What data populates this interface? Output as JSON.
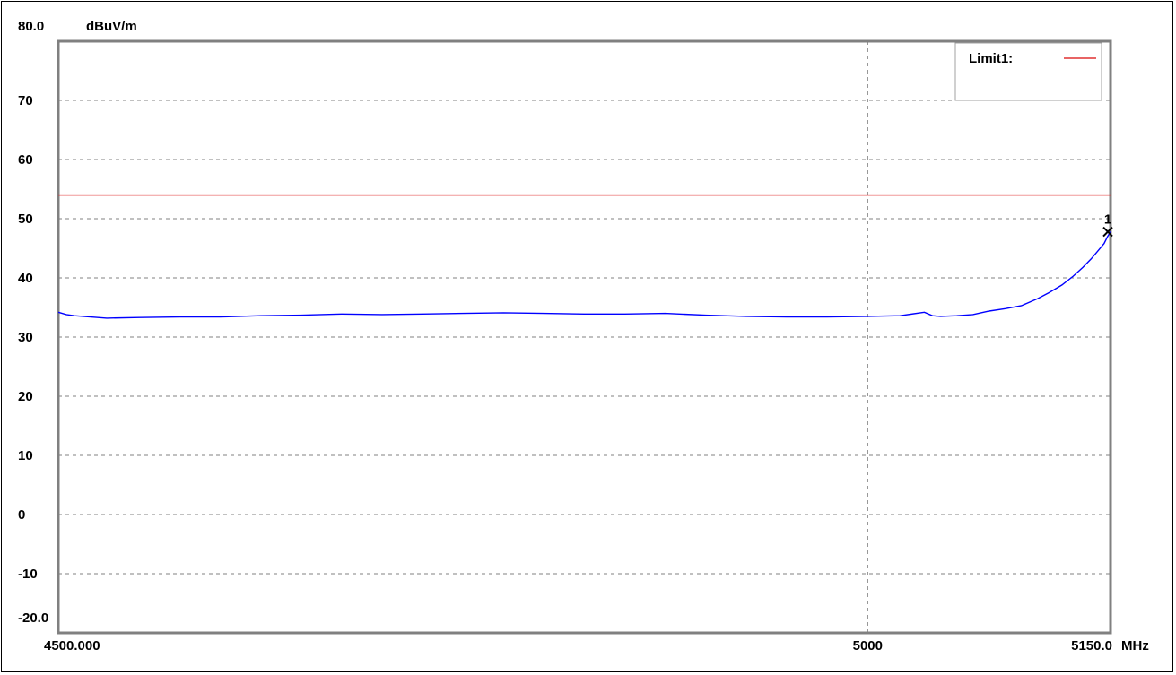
{
  "chart_data": {
    "type": "line",
    "title": "",
    "ylabel": "dBuV/m",
    "xunit": "MHz",
    "ylim": [
      -20,
      80
    ],
    "xlim": [
      4500,
      5150
    ],
    "y_ticks": [
      {
        "value": 80,
        "label": "80.0"
      },
      {
        "value": 70,
        "label": "70"
      },
      {
        "value": 60,
        "label": "60"
      },
      {
        "value": 50,
        "label": "50"
      },
      {
        "value": 40,
        "label": "40"
      },
      {
        "value": 30,
        "label": "30"
      },
      {
        "value": 20,
        "label": "20"
      },
      {
        "value": 10,
        "label": "10"
      },
      {
        "value": 0,
        "label": "0"
      },
      {
        "value": -10,
        "label": "-10"
      },
      {
        "value": -20,
        "label": "-20.0"
      }
    ],
    "x_ticks": [
      {
        "value": 4500,
        "label": "4500.000"
      },
      {
        "value": 5000,
        "label": "5000"
      },
      {
        "value": 5150,
        "label": "5150.0"
      }
    ],
    "grid": true,
    "legend": {
      "position": "top-right",
      "entries": [
        {
          "name": "Limit1:",
          "color": "#e03030"
        }
      ]
    },
    "limit_line": {
      "name": "Limit1:",
      "value": 54.0,
      "color": "#e03030"
    },
    "series": [
      {
        "color": "#0000ff",
        "x": [
          4500,
          4505,
          4510,
          4520,
          4530,
          4550,
          4575,
          4600,
          4625,
          4650,
          4675,
          4700,
          4725,
          4750,
          4775,
          4800,
          4825,
          4850,
          4875,
          4900,
          4925,
          4950,
          4975,
          5000,
          5020,
          5035,
          5040,
          5045,
          5055,
          5065,
          5075,
          5085,
          5095,
          5105,
          5112,
          5120,
          5127,
          5133,
          5138,
          5142,
          5146,
          5148,
          5150
        ],
        "y": [
          34.2,
          33.8,
          33.6,
          33.4,
          33.2,
          33.3,
          33.4,
          33.4,
          33.6,
          33.7,
          33.9,
          33.8,
          33.9,
          34.0,
          34.1,
          34.0,
          33.9,
          33.9,
          34.0,
          33.7,
          33.5,
          33.4,
          33.4,
          33.5,
          33.6,
          34.2,
          33.6,
          33.5,
          33.6,
          33.8,
          34.4,
          34.8,
          35.3,
          36.5,
          37.5,
          38.8,
          40.3,
          41.8,
          43.2,
          44.5,
          45.8,
          46.9,
          47.8
        ]
      }
    ],
    "markers": [
      {
        "label": "1",
        "x": 5150,
        "y": 47.8
      }
    ]
  }
}
